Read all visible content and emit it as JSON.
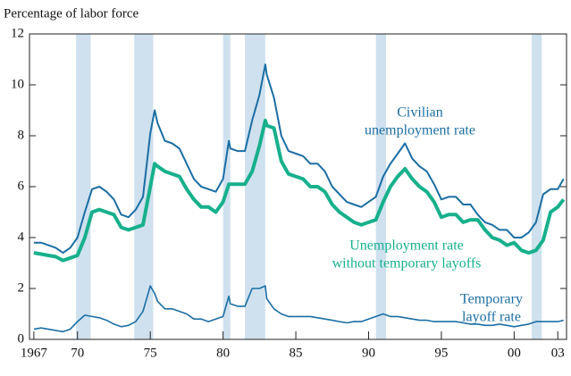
{
  "chart_data": {
    "type": "line",
    "y_axis_label": "Percentage of labor force",
    "annotations": [
      {
        "lines": [
          "Civilian",
          "unemployment rate"
        ],
        "series": 0
      },
      {
        "lines": [
          "Unemployment rate",
          "without temporary layoffs"
        ],
        "series": 1
      },
      {
        "lines": [
          "Temporary",
          "layoff rate"
        ],
        "series": 2
      }
    ],
    "x": [
      1967,
      1967.5,
      1968,
      1968.5,
      1969,
      1969.5,
      1970,
      1970.5,
      1971,
      1971.5,
      1972,
      1972.5,
      1973,
      1973.5,
      1974,
      1974.5,
      1975,
      1975.3,
      1975.5,
      1976,
      1976.5,
      1977,
      1977.5,
      1978,
      1978.5,
      1979,
      1979.5,
      1980,
      1980.4,
      1980.5,
      1981,
      1981.5,
      1982,
      1982.5,
      1982.9,
      1983,
      1983.5,
      1984,
      1984.5,
      1985,
      1985.5,
      1986,
      1986.5,
      1987,
      1987.5,
      1988,
      1988.5,
      1989,
      1989.5,
      1990,
      1990.5,
      1991,
      1991.5,
      1992,
      1992.5,
      1993,
      1993.5,
      1994,
      1994.5,
      1995,
      1995.5,
      1996,
      1996.5,
      1997,
      1997.5,
      1998,
      1998.5,
      1999,
      1999.5,
      2000,
      2000.5,
      2001,
      2001.5,
      2002,
      2002.5,
      2003,
      2003.4
    ],
    "series": [
      {
        "name": "Civilian unemployment rate",
        "color": "#1b6ea3",
        "width": 2,
        "values": [
          3.8,
          3.8,
          3.7,
          3.6,
          3.4,
          3.6,
          4.0,
          5.0,
          5.9,
          6.0,
          5.8,
          5.5,
          4.9,
          4.8,
          5.1,
          5.6,
          8.1,
          9.0,
          8.5,
          7.8,
          7.7,
          7.5,
          6.9,
          6.3,
          6.0,
          5.9,
          5.8,
          6.3,
          7.8,
          7.5,
          7.4,
          7.4,
          8.6,
          9.6,
          10.8,
          10.4,
          9.5,
          8.0,
          7.4,
          7.3,
          7.2,
          6.9,
          6.9,
          6.6,
          6.0,
          5.7,
          5.4,
          5.3,
          5.2,
          5.4,
          5.6,
          6.4,
          6.9,
          7.3,
          7.7,
          7.1,
          6.8,
          6.6,
          6.1,
          5.5,
          5.6,
          5.6,
          5.3,
          5.3,
          4.9,
          4.6,
          4.5,
          4.3,
          4.3,
          4.0,
          4.0,
          4.2,
          4.6,
          5.7,
          5.9,
          5.9,
          6.3
        ]
      },
      {
        "name": "Unemployment rate without temporary layoffs",
        "color": "#17b08c",
        "width": 4,
        "values": [
          3.4,
          3.35,
          3.3,
          3.25,
          3.1,
          3.2,
          3.3,
          4.0,
          5.0,
          5.1,
          5.0,
          4.9,
          4.4,
          4.3,
          4.4,
          4.5,
          6.0,
          6.9,
          6.8,
          6.6,
          6.5,
          6.4,
          5.9,
          5.5,
          5.2,
          5.2,
          5.0,
          5.4,
          6.1,
          6.1,
          6.1,
          6.1,
          6.6,
          7.6,
          8.6,
          8.4,
          8.3,
          7.0,
          6.5,
          6.4,
          6.3,
          6.0,
          6.0,
          5.8,
          5.3,
          5.0,
          4.8,
          4.6,
          4.5,
          4.6,
          4.7,
          5.4,
          6.0,
          6.4,
          6.7,
          6.3,
          6.0,
          5.8,
          5.4,
          4.8,
          4.9,
          4.9,
          4.6,
          4.7,
          4.7,
          4.3,
          4.0,
          3.9,
          3.7,
          3.8,
          3.5,
          3.4,
          3.5,
          3.9,
          5.0,
          5.2,
          5.5
        ]
      },
      {
        "name": "Temporary layoff rate",
        "color": "#1b6ea3",
        "width": 1.6,
        "values": [
          0.4,
          0.45,
          0.4,
          0.35,
          0.3,
          0.4,
          0.7,
          0.95,
          0.9,
          0.85,
          0.75,
          0.6,
          0.5,
          0.55,
          0.7,
          1.1,
          2.1,
          1.8,
          1.5,
          1.2,
          1.2,
          1.1,
          1.0,
          0.8,
          0.8,
          0.7,
          0.8,
          0.9,
          1.7,
          1.4,
          1.3,
          1.3,
          2.0,
          2.0,
          2.1,
          1.6,
          1.2,
          1.0,
          0.9,
          0.9,
          0.9,
          0.9,
          0.85,
          0.8,
          0.75,
          0.7,
          0.65,
          0.7,
          0.7,
          0.8,
          0.9,
          1.0,
          0.9,
          0.9,
          0.85,
          0.8,
          0.75,
          0.75,
          0.7,
          0.7,
          0.7,
          0.7,
          0.65,
          0.6,
          0.6,
          0.55,
          0.55,
          0.6,
          0.55,
          0.5,
          0.55,
          0.6,
          0.7,
          0.7,
          0.7,
          0.7,
          0.75
        ]
      }
    ],
    "recessions": [
      [
        1969.9,
        1970.9
      ],
      [
        1973.9,
        1975.2
      ],
      [
        1980.0,
        1980.5
      ],
      [
        1981.5,
        1982.9
      ],
      [
        1990.5,
        1991.2
      ],
      [
        2001.2,
        2001.9
      ]
    ],
    "recession_color": "#cfe1ef",
    "xlim": [
      1966.7,
      2003.6
    ],
    "xticks": [
      1967,
      {
        "value": 1970,
        "label": "70"
      },
      {
        "value": 1975,
        "label": "75"
      },
      {
        "value": 1980,
        "label": "80"
      },
      {
        "value": 1985,
        "label": "85"
      },
      {
        "value": 1990,
        "label": "90"
      },
      {
        "value": 1995,
        "label": "95"
      },
      {
        "value": 2000,
        "label": "00"
      },
      {
        "value": 2003,
        "label": "03"
      }
    ],
    "ylim": [
      0,
      12
    ],
    "yticks": [
      0,
      2,
      4,
      6,
      8,
      10,
      12
    ]
  }
}
